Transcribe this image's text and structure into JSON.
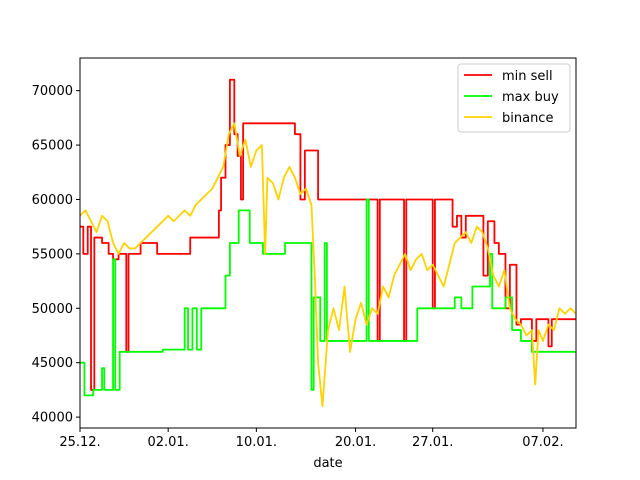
{
  "chart_data": {
    "type": "line",
    "title": "",
    "xlabel": "date",
    "ylabel": "",
    "x_ticks": [
      "25.12.",
      "02.01.",
      "10.01.",
      "20.01.",
      "27.01.",
      "07.02."
    ],
    "x_tick_values": [
      0,
      8,
      16,
      25,
      32,
      42
    ],
    "x_range": [
      0,
      45
    ],
    "y_ticks": [
      40000,
      45000,
      50000,
      55000,
      60000,
      65000,
      70000
    ],
    "y_range": [
      39000,
      73000
    ],
    "grid": false,
    "legend": {
      "position": "top-right",
      "entries": [
        "min sell",
        "max buy",
        "binance"
      ]
    },
    "series": [
      {
        "name": "min sell",
        "color": "#ff0000",
        "points": [
          [
            0,
            57500
          ],
          [
            0.3,
            57500
          ],
          [
            0.3,
            55000
          ],
          [
            0.7,
            55000
          ],
          [
            0.7,
            57500
          ],
          [
            1.0,
            57500
          ],
          [
            1.0,
            42500
          ],
          [
            1.3,
            42500
          ],
          [
            1.3,
            56500
          ],
          [
            2.0,
            56500
          ],
          [
            2.0,
            56000
          ],
          [
            2.6,
            56000
          ],
          [
            2.6,
            55000
          ],
          [
            3.0,
            55000
          ],
          [
            3.0,
            54500
          ],
          [
            3.5,
            54500
          ],
          [
            3.5,
            55000
          ],
          [
            4.0,
            55000
          ],
          [
            4.0,
            55000
          ],
          [
            4.2,
            55000
          ],
          [
            4.2,
            46000
          ],
          [
            4.4,
            46000
          ],
          [
            4.4,
            55000
          ],
          [
            5.5,
            55000
          ],
          [
            5.5,
            56000
          ],
          [
            7.0,
            56000
          ],
          [
            7.0,
            55000
          ],
          [
            10.0,
            55000
          ],
          [
            10.0,
            56500
          ],
          [
            12.6,
            56500
          ],
          [
            12.6,
            59000
          ],
          [
            12.8,
            59000
          ],
          [
            12.8,
            62000
          ],
          [
            13.2,
            62000
          ],
          [
            13.2,
            65000
          ],
          [
            13.6,
            65000
          ],
          [
            13.6,
            71000
          ],
          [
            14.0,
            71000
          ],
          [
            14.0,
            66000
          ],
          [
            14.3,
            66000
          ],
          [
            14.3,
            64000
          ],
          [
            14.6,
            64000
          ],
          [
            14.6,
            60000
          ],
          [
            14.8,
            60000
          ],
          [
            14.8,
            67000
          ],
          [
            19.5,
            67000
          ],
          [
            19.5,
            66000
          ],
          [
            20.0,
            66000
          ],
          [
            20.0,
            60000
          ],
          [
            20.4,
            60000
          ],
          [
            20.4,
            64500
          ],
          [
            21.6,
            64500
          ],
          [
            21.6,
            60000
          ],
          [
            27.0,
            60000
          ],
          [
            27.0,
            47000
          ],
          [
            27.2,
            47000
          ],
          [
            27.2,
            60000
          ],
          [
            29.4,
            60000
          ],
          [
            29.4,
            47000
          ],
          [
            29.6,
            47000
          ],
          [
            29.6,
            60000
          ],
          [
            32.0,
            60000
          ],
          [
            32.0,
            50000
          ],
          [
            32.2,
            50000
          ],
          [
            32.2,
            60000
          ],
          [
            33.8,
            60000
          ],
          [
            33.8,
            57500
          ],
          [
            34.2,
            57500
          ],
          [
            34.2,
            58500
          ],
          [
            34.6,
            58500
          ],
          [
            34.6,
            56500
          ],
          [
            35.0,
            56500
          ],
          [
            35.0,
            58500
          ],
          [
            36.6,
            58500
          ],
          [
            36.6,
            53000
          ],
          [
            37.0,
            53000
          ],
          [
            37.0,
            58000
          ],
          [
            37.6,
            58000
          ],
          [
            37.6,
            56000
          ],
          [
            38.0,
            56000
          ],
          [
            38.0,
            55000
          ],
          [
            38.6,
            55000
          ],
          [
            38.6,
            50000
          ],
          [
            39.0,
            50000
          ],
          [
            39.0,
            54000
          ],
          [
            39.6,
            54000
          ],
          [
            39.6,
            48500
          ],
          [
            40.0,
            48500
          ],
          [
            40.0,
            49000
          ],
          [
            41.0,
            49000
          ],
          [
            41.0,
            47000
          ],
          [
            41.4,
            47000
          ],
          [
            41.4,
            49000
          ],
          [
            42.5,
            49000
          ],
          [
            42.5,
            46500
          ],
          [
            42.8,
            46500
          ],
          [
            42.8,
            49000
          ],
          [
            45,
            49000
          ]
        ]
      },
      {
        "name": "max buy",
        "color": "#00ff00",
        "points": [
          [
            0,
            45000
          ],
          [
            0.4,
            45000
          ],
          [
            0.4,
            42000
          ],
          [
            1.2,
            42000
          ],
          [
            1.2,
            42500
          ],
          [
            2.0,
            42500
          ],
          [
            2.0,
            44500
          ],
          [
            2.2,
            44500
          ],
          [
            2.2,
            42500
          ],
          [
            3.0,
            42500
          ],
          [
            3.0,
            54500
          ],
          [
            3.2,
            54500
          ],
          [
            3.2,
            42500
          ],
          [
            3.6,
            42500
          ],
          [
            3.6,
            46000
          ],
          [
            7.5,
            46000
          ],
          [
            7.5,
            46200
          ],
          [
            9.5,
            46200
          ],
          [
            9.5,
            50000
          ],
          [
            9.8,
            50000
          ],
          [
            9.8,
            46200
          ],
          [
            10.2,
            46200
          ],
          [
            10.2,
            50000
          ],
          [
            10.6,
            50000
          ],
          [
            10.6,
            46200
          ],
          [
            11.0,
            46200
          ],
          [
            11.0,
            50000
          ],
          [
            13.2,
            50000
          ],
          [
            13.2,
            53000
          ],
          [
            13.6,
            53000
          ],
          [
            13.6,
            56000
          ],
          [
            14.4,
            56000
          ],
          [
            14.4,
            59000
          ],
          [
            15.4,
            59000
          ],
          [
            15.4,
            56000
          ],
          [
            16.6,
            56000
          ],
          [
            16.6,
            55000
          ],
          [
            18.6,
            55000
          ],
          [
            18.6,
            56000
          ],
          [
            21.0,
            56000
          ],
          [
            21.0,
            42500
          ],
          [
            21.2,
            42500
          ],
          [
            21.2,
            51000
          ],
          [
            21.8,
            51000
          ],
          [
            21.8,
            47000
          ],
          [
            22.2,
            47000
          ],
          [
            22.2,
            56000
          ],
          [
            22.4,
            56000
          ],
          [
            22.4,
            47000
          ],
          [
            26.0,
            47000
          ],
          [
            26.0,
            60000
          ],
          [
            26.2,
            60000
          ],
          [
            26.2,
            47000
          ],
          [
            30.6,
            47000
          ],
          [
            30.6,
            50000
          ],
          [
            34.0,
            50000
          ],
          [
            34.0,
            51000
          ],
          [
            34.6,
            51000
          ],
          [
            34.6,
            50000
          ],
          [
            35.6,
            50000
          ],
          [
            35.6,
            52000
          ],
          [
            37.2,
            52000
          ],
          [
            37.2,
            55000
          ],
          [
            37.4,
            55000
          ],
          [
            37.4,
            50000
          ],
          [
            38.6,
            50000
          ],
          [
            38.6,
            51000
          ],
          [
            39.2,
            51000
          ],
          [
            39.2,
            48000
          ],
          [
            40.0,
            48000
          ],
          [
            40.0,
            47000
          ],
          [
            41.0,
            47000
          ],
          [
            41.0,
            46000
          ],
          [
            45,
            46000
          ]
        ]
      },
      {
        "name": "binance",
        "color": "#ffd200",
        "points": [
          [
            0,
            58500
          ],
          [
            0.5,
            59000
          ],
          [
            1.0,
            58000
          ],
          [
            1.5,
            57000
          ],
          [
            2.0,
            58500
          ],
          [
            2.5,
            58000
          ],
          [
            3.0,
            56000
          ],
          [
            3.5,
            55000
          ],
          [
            4.0,
            56000
          ],
          [
            4.5,
            55500
          ],
          [
            5.0,
            55500
          ],
          [
            5.5,
            56000
          ],
          [
            6.0,
            56500
          ],
          [
            6.5,
            57000
          ],
          [
            7.0,
            57500
          ],
          [
            7.5,
            58000
          ],
          [
            8.0,
            58500
          ],
          [
            8.5,
            58000
          ],
          [
            9.0,
            58500
          ],
          [
            9.5,
            59000
          ],
          [
            10.0,
            58500
          ],
          [
            10.5,
            59500
          ],
          [
            11.0,
            60000
          ],
          [
            11.5,
            60500
          ],
          [
            12.0,
            61000
          ],
          [
            12.5,
            62000
          ],
          [
            13.0,
            63000
          ],
          [
            13.5,
            66000
          ],
          [
            14.0,
            67000
          ],
          [
            14.5,
            64000
          ],
          [
            15.0,
            65500
          ],
          [
            15.5,
            63000
          ],
          [
            16.0,
            64500
          ],
          [
            16.5,
            65000
          ],
          [
            16.8,
            55000
          ],
          [
            17.0,
            62000
          ],
          [
            17.5,
            61500
          ],
          [
            18.0,
            60000
          ],
          [
            18.5,
            62000
          ],
          [
            19.0,
            63000
          ],
          [
            19.5,
            62000
          ],
          [
            20.0,
            60500
          ],
          [
            20.5,
            61000
          ],
          [
            21.0,
            59500
          ],
          [
            21.3,
            53000
          ],
          [
            21.6,
            45000
          ],
          [
            22.0,
            41000
          ],
          [
            22.5,
            48000
          ],
          [
            23.0,
            50000
          ],
          [
            23.5,
            48000
          ],
          [
            24.0,
            52000
          ],
          [
            24.5,
            46000
          ],
          [
            25.0,
            49000
          ],
          [
            25.5,
            50500
          ],
          [
            26.0,
            48500
          ],
          [
            26.5,
            50000
          ],
          [
            27.0,
            49500
          ],
          [
            27.5,
            52000
          ],
          [
            28.0,
            51000
          ],
          [
            28.5,
            53000
          ],
          [
            29.0,
            54000
          ],
          [
            29.5,
            55000
          ],
          [
            30.0,
            53500
          ],
          [
            30.5,
            54500
          ],
          [
            31.0,
            55000
          ],
          [
            31.5,
            53500
          ],
          [
            32.0,
            54000
          ],
          [
            32.5,
            53000
          ],
          [
            33.0,
            52000
          ],
          [
            33.5,
            54000
          ],
          [
            34.0,
            56000
          ],
          [
            34.5,
            56500
          ],
          [
            35.0,
            57000
          ],
          [
            35.5,
            56000
          ],
          [
            36.0,
            57500
          ],
          [
            36.5,
            57000
          ],
          [
            37.0,
            55500
          ],
          [
            37.5,
            53000
          ],
          [
            38.0,
            52000
          ],
          [
            38.5,
            53500
          ],
          [
            39.0,
            50000
          ],
          [
            39.5,
            49000
          ],
          [
            40.0,
            48500
          ],
          [
            40.5,
            47500
          ],
          [
            41.0,
            48000
          ],
          [
            41.3,
            43000
          ],
          [
            41.6,
            48000
          ],
          [
            42.0,
            47000
          ],
          [
            42.5,
            48500
          ],
          [
            43.0,
            48000
          ],
          [
            43.5,
            50000
          ],
          [
            44.0,
            49500
          ],
          [
            44.5,
            50000
          ],
          [
            45,
            49500
          ]
        ]
      }
    ]
  }
}
